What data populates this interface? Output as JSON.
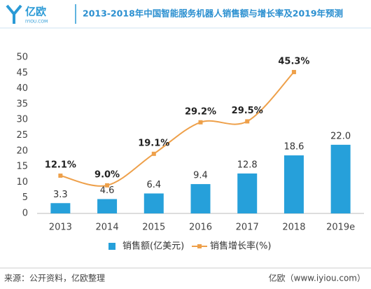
{
  "header": {
    "logo_text": "亿欧",
    "logo_sub": "IYIOU.COM",
    "title": "2013-2018年中国智能服务机器人销售额与增长率及2019年预测"
  },
  "chart_data": {
    "type": "combo",
    "categories": [
      "2013",
      "2014",
      "2015",
      "2016",
      "2017",
      "2018",
      "2019e"
    ],
    "series": [
      {
        "name": "销售额(亿美元)",
        "type": "bar",
        "color": "#26a0da",
        "values": [
          3.3,
          4.6,
          6.4,
          9.4,
          12.8,
          18.6,
          22.0
        ],
        "value_labels": [
          "3.3",
          "4.6",
          "6.4",
          "9.4",
          "12.8",
          "18.6",
          "22.0"
        ]
      },
      {
        "name": "销售增长率(%)",
        "type": "line",
        "color": "#eea04a",
        "values": [
          12.1,
          9.0,
          19.1,
          29.2,
          29.5,
          45.3,
          null
        ],
        "value_labels": [
          "12.1%",
          "9.0%",
          "19.1%",
          "29.2%",
          "29.5%",
          "45.3%",
          null
        ]
      }
    ],
    "ylim": [
      0,
      50
    ],
    "yticks": [
      0,
      5,
      10,
      15,
      20,
      25,
      30,
      35,
      40,
      45,
      50
    ],
    "grid": false,
    "legend": "bottom"
  },
  "footer": {
    "source": "来源：公开资料，亿欧整理",
    "site": "亿欧（www.iyiou.com）"
  }
}
